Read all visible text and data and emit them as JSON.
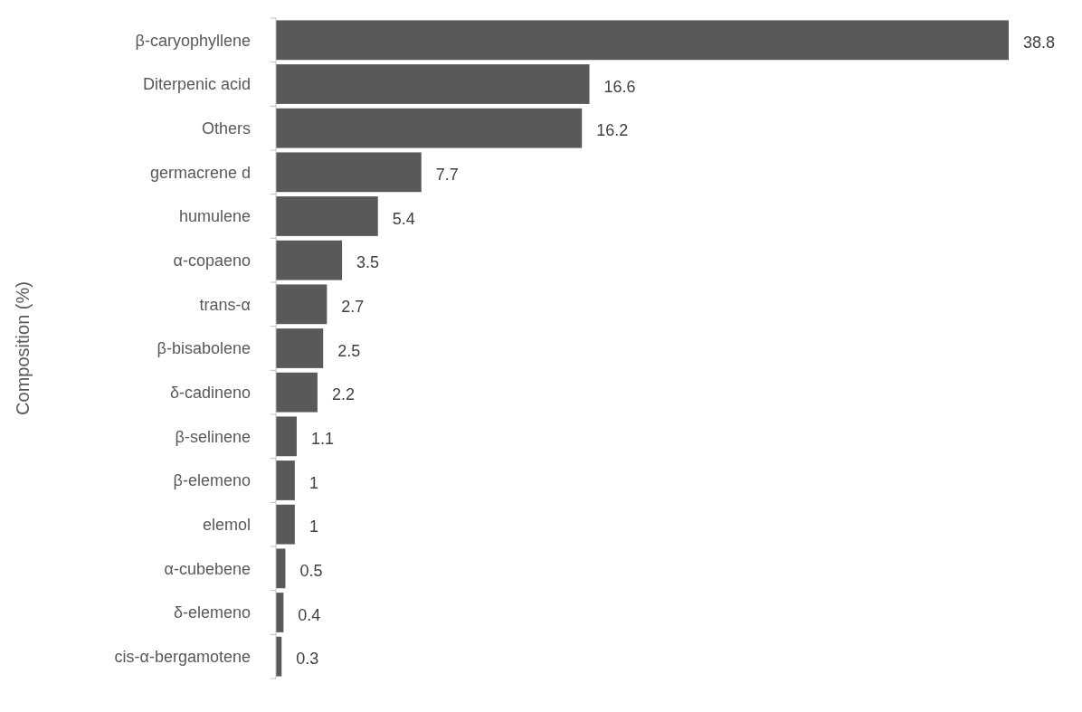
{
  "chart_data": {
    "type": "bar",
    "orientation": "horizontal",
    "ylabel": "Composition (%)",
    "categories": [
      "β-caryophyllene",
      "Diterpenic acid",
      "Others",
      "germacrene d",
      "humulene",
      "α-copaeno",
      "trans-α",
      "β-bisabolene",
      "δ-cadineno",
      "β-selinene",
      "β-elemeno",
      "elemol",
      "α-cubebene",
      "δ-elemeno",
      "cis-α-bergamotene"
    ],
    "values": [
      38.8,
      16.6,
      16.2,
      7.7,
      5.4,
      3.5,
      2.7,
      2.5,
      2.2,
      1.1,
      1,
      1,
      0.5,
      0.4,
      0.3
    ],
    "color": "#595959",
    "xlim": [
      0,
      38.8
    ],
    "data_labels": true,
    "tick_labels": "y"
  }
}
